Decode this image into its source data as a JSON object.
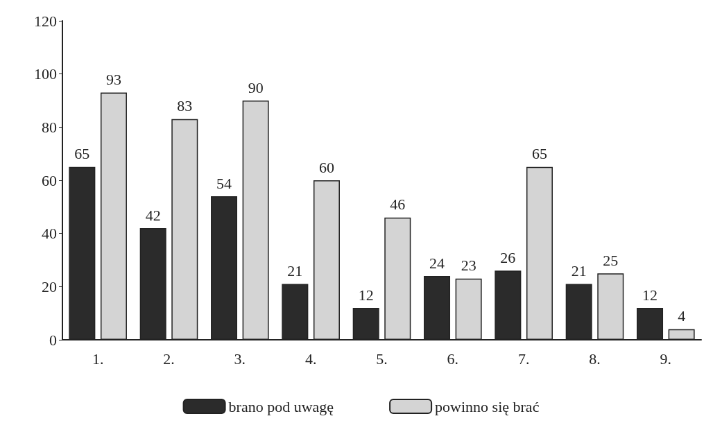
{
  "chart_data": {
    "type": "bar",
    "categories": [
      "1.",
      "2.",
      "3.",
      "4.",
      "5.",
      "6.",
      "7.",
      "8.",
      "9."
    ],
    "series": [
      {
        "name": "brano pod uwagę",
        "color": "#2b2b2b",
        "values": [
          65,
          42,
          54,
          21,
          12,
          24,
          26,
          21,
          12
        ]
      },
      {
        "name": "powinno się brać",
        "color": "#d4d4d4",
        "values": [
          93,
          83,
          90,
          60,
          46,
          23,
          65,
          25,
          4
        ]
      }
    ],
    "ylim": [
      0,
      120
    ],
    "yticks": [
      0,
      20,
      40,
      60,
      80,
      100,
      120
    ],
    "grid": false,
    "legend": "bottom",
    "data_labels": true
  }
}
